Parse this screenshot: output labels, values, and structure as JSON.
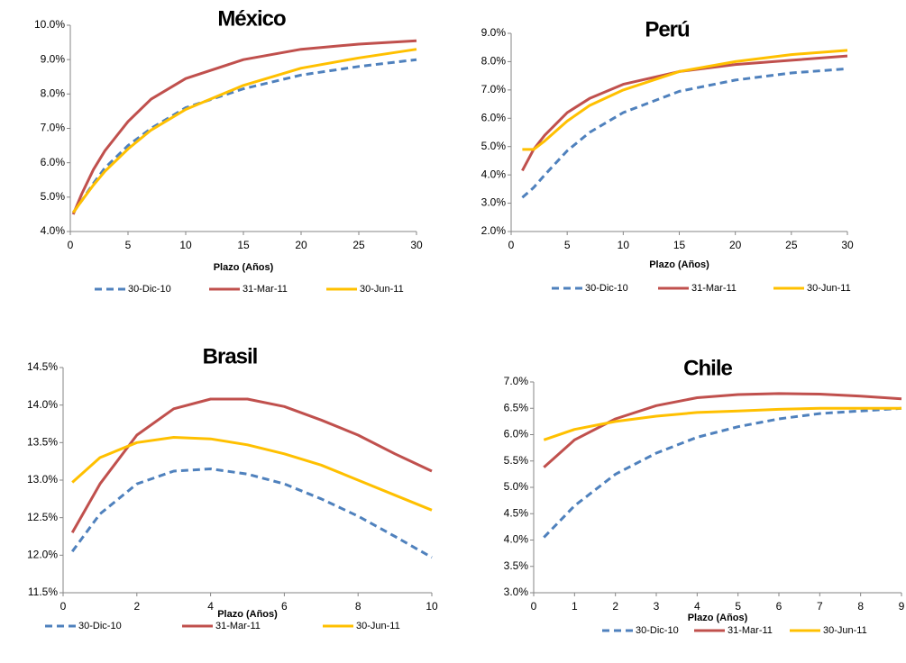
{
  "chart_data": [
    {
      "type": "line",
      "title": "México",
      "xlabel": "Plazo (Años)",
      "legend": "bottom",
      "x": [
        0.25,
        1,
        2,
        3,
        5,
        7,
        10,
        15,
        20,
        25,
        30
      ],
      "series": [
        {
          "name": "30-Dic-10",
          "color": "#4f81bd",
          "dashed": true,
          "values": [
            4.55,
            4.9,
            5.4,
            5.85,
            6.5,
            7.0,
            7.6,
            8.15,
            8.55,
            8.8,
            9.0
          ]
        },
        {
          "name": "31-Mar-11",
          "color": "#c0504d",
          "values": [
            4.5,
            5.1,
            5.8,
            6.35,
            7.2,
            7.85,
            8.45,
            9.0,
            9.3,
            9.45,
            9.55
          ]
        },
        {
          "name": "30-Jun-11",
          "color": "#ffc000",
          "values": [
            4.55,
            4.9,
            5.35,
            5.75,
            6.4,
            6.95,
            7.55,
            8.25,
            8.75,
            9.05,
            9.3
          ]
        }
      ],
      "xlim": [
        0,
        30
      ],
      "xticks": [
        0,
        5,
        10,
        15,
        20,
        25,
        30
      ],
      "ylim": [
        4,
        10
      ],
      "yticks": [
        {
          "value": 4,
          "label": "4.0%"
        },
        {
          "value": 5,
          "label": "5.0%"
        },
        {
          "value": 6,
          "label": "6.0%"
        },
        {
          "value": 7,
          "label": "7.0%"
        },
        {
          "value": 8,
          "label": "8.0%"
        },
        {
          "value": 9,
          "label": "9.0%"
        },
        {
          "value": 10,
          "label": "10.0%"
        }
      ]
    },
    {
      "type": "line",
      "title": "Perú",
      "xlabel": "Plazo (Años)",
      "legend": "bottom",
      "x": [
        1,
        2,
        3,
        5,
        7,
        10,
        15,
        20,
        25,
        30
      ],
      "series": [
        {
          "name": "30-Dic-10",
          "color": "#4f81bd",
          "dashed": true,
          "values": [
            3.2,
            3.55,
            4.0,
            4.85,
            5.5,
            6.2,
            6.95,
            7.35,
            7.6,
            7.75
          ]
        },
        {
          "name": "31-Mar-11",
          "color": "#c0504d",
          "values": [
            4.15,
            4.9,
            5.4,
            6.2,
            6.7,
            7.2,
            7.65,
            7.9,
            8.05,
            8.2
          ]
        },
        {
          "name": "30-Jun-11",
          "color": "#ffc000",
          "values": [
            4.9,
            4.9,
            5.2,
            5.9,
            6.45,
            7.0,
            7.65,
            8.0,
            8.25,
            8.4
          ]
        }
      ],
      "xlim": [
        0,
        30
      ],
      "xticks": [
        0,
        5,
        10,
        15,
        20,
        25,
        30
      ],
      "ylim": [
        2,
        9
      ],
      "yticks": [
        {
          "value": 2,
          "label": "2.0%"
        },
        {
          "value": 3,
          "label": "3.0%"
        },
        {
          "value": 4,
          "label": "4.0%"
        },
        {
          "value": 5,
          "label": "5.0%"
        },
        {
          "value": 6,
          "label": "6.0%"
        },
        {
          "value": 7,
          "label": "7.0%"
        },
        {
          "value": 8,
          "label": "8.0%"
        },
        {
          "value": 9,
          "label": "9.0%"
        }
      ]
    },
    {
      "type": "line",
      "title": "Brasil",
      "xlabel": "Plazo (Años)",
      "legend": "bottom",
      "x": [
        0.25,
        1,
        2,
        3,
        4,
        5,
        6,
        7,
        8,
        9,
        10
      ],
      "series": [
        {
          "name": "30-Dic-10",
          "color": "#4f81bd",
          "dashed": true,
          "values": [
            12.05,
            12.55,
            12.95,
            13.12,
            13.15,
            13.08,
            12.95,
            12.75,
            12.52,
            12.25,
            11.97
          ]
        },
        {
          "name": "31-Mar-11",
          "color": "#c0504d",
          "values": [
            12.3,
            12.95,
            13.6,
            13.95,
            14.08,
            14.08,
            13.98,
            13.8,
            13.6,
            13.35,
            13.12
          ]
        },
        {
          "name": "30-Jun-11",
          "color": "#ffc000",
          "values": [
            12.97,
            13.3,
            13.5,
            13.57,
            13.55,
            13.47,
            13.35,
            13.2,
            13.0,
            12.8,
            12.6
          ]
        }
      ],
      "xlim": [
        0,
        10
      ],
      "xticks": [
        0,
        2,
        4,
        6,
        8,
        10
      ],
      "ylim": [
        11.5,
        14.5
      ],
      "yticks": [
        {
          "value": 11.5,
          "label": "11.5%"
        },
        {
          "value": 12,
          "label": "12.0%"
        },
        {
          "value": 12.5,
          "label": "12.5%"
        },
        {
          "value": 13,
          "label": "13.0%"
        },
        {
          "value": 13.5,
          "label": "13.5%"
        },
        {
          "value": 14,
          "label": "14.0%"
        },
        {
          "value": 14.5,
          "label": "14.5%"
        }
      ]
    },
    {
      "type": "line",
      "title": "Chile",
      "xlabel": "Plazo (Años)",
      "legend": "bottom",
      "x": [
        0.25,
        1,
        2,
        3,
        4,
        5,
        6,
        7,
        8,
        9
      ],
      "series": [
        {
          "name": "30-Dic-10",
          "color": "#4f81bd",
          "dashed": true,
          "values": [
            4.05,
            4.65,
            5.25,
            5.65,
            5.95,
            6.15,
            6.3,
            6.4,
            6.45,
            6.5
          ]
        },
        {
          "name": "31-Mar-11",
          "color": "#c0504d",
          "values": [
            5.38,
            5.9,
            6.3,
            6.55,
            6.7,
            6.76,
            6.78,
            6.77,
            6.73,
            6.68
          ]
        },
        {
          "name": "30-Jun-11",
          "color": "#ffc000",
          "values": [
            5.9,
            6.1,
            6.25,
            6.35,
            6.42,
            6.45,
            6.48,
            6.5,
            6.5,
            6.5
          ]
        }
      ],
      "xlim": [
        0,
        9
      ],
      "xticks": [
        0,
        1,
        2,
        3,
        4,
        5,
        6,
        7,
        8,
        9
      ],
      "ylim": [
        3,
        7
      ],
      "yticks": [
        {
          "value": 3,
          "label": "3.0%"
        },
        {
          "value": 3.5,
          "label": "3.5%"
        },
        {
          "value": 4,
          "label": "4.0%"
        },
        {
          "value": 4.5,
          "label": "4.5%"
        },
        {
          "value": 5,
          "label": "5.0%"
        },
        {
          "value": 5.5,
          "label": "5.5%"
        },
        {
          "value": 6,
          "label": "6.0%"
        },
        {
          "value": 6.5,
          "label": "6.5%"
        },
        {
          "value": 7,
          "label": "7.0%"
        }
      ]
    }
  ]
}
